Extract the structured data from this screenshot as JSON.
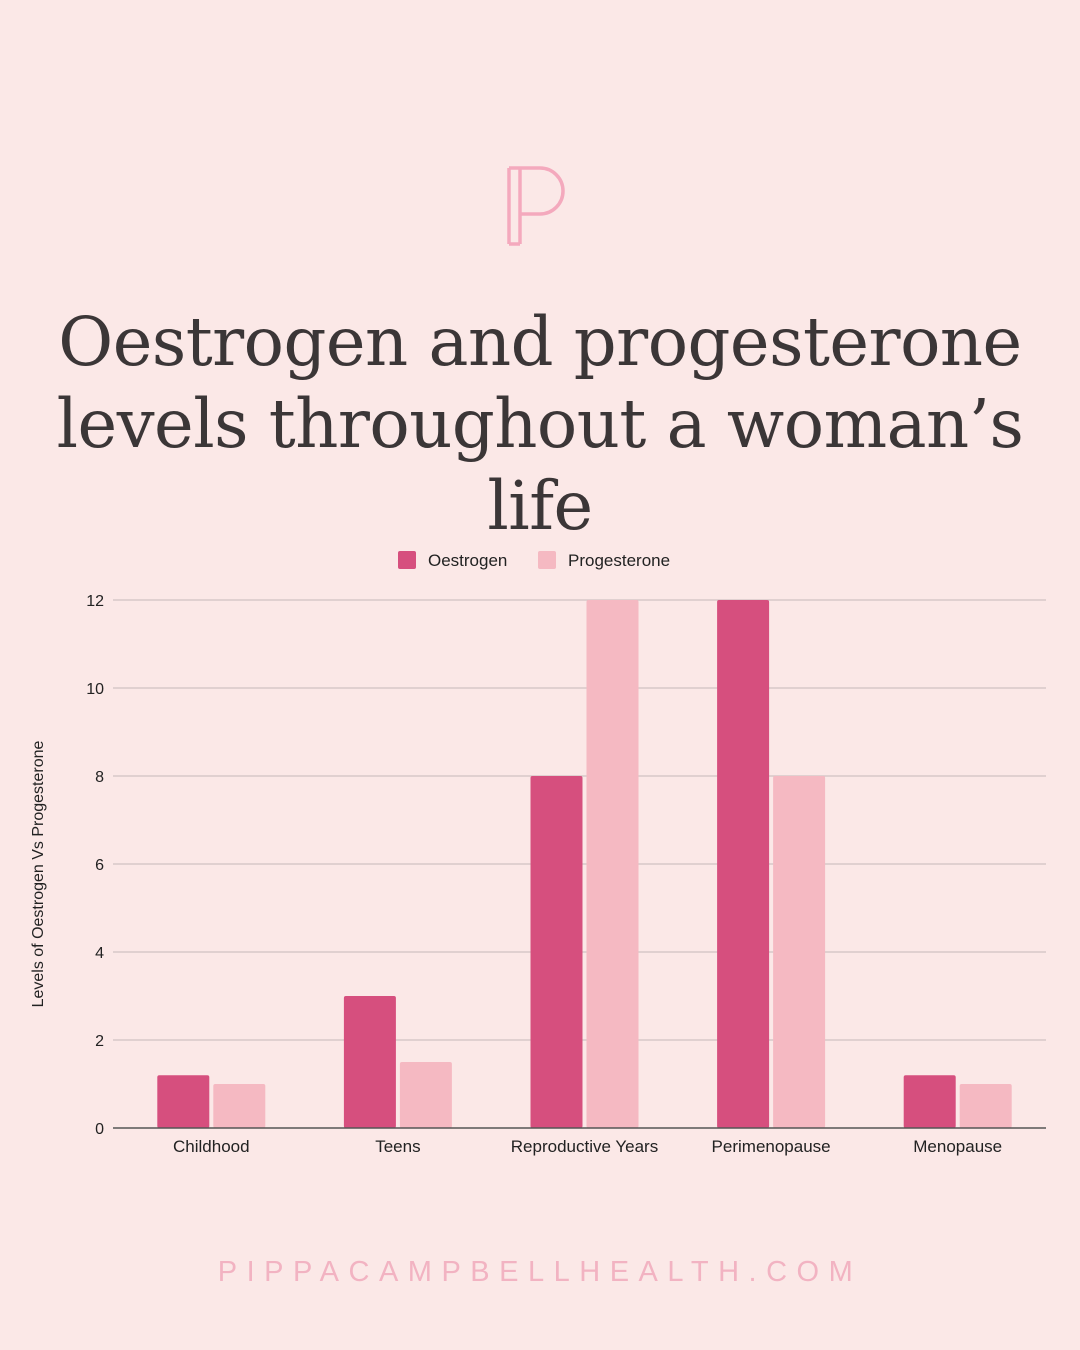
{
  "page": {
    "title_line1": "Oestrogen and progesterone",
    "title_line2": "levels throughout a woman’s life",
    "footer": "PIPPACAMPBELLHEALTH.COM",
    "logo_icon": "letter-p-monogram-icon"
  },
  "colors": {
    "background": "#fbe8e7",
    "oestrogen": "#d64f7e",
    "progesterone": "#f5b9c2",
    "logo": "#f4a9bd",
    "title": "#3b3637",
    "footer": "#f2b3c2"
  },
  "chart_data": {
    "type": "bar",
    "categories": [
      "Childhood",
      "Teens",
      "Reproductive Years",
      "Perimenopause",
      "Menopause"
    ],
    "series": [
      {
        "name": "Oestrogen",
        "values": [
          1.2,
          3,
          8,
          12,
          1.2
        ]
      },
      {
        "name": "Progesterone",
        "values": [
          1,
          1.5,
          12,
          8,
          1
        ]
      }
    ],
    "ylabel": "Levels of Oestrogen Vs Progesterone",
    "xlabel": "",
    "ylim": [
      0,
      12
    ],
    "yticks": [
      0,
      2,
      4,
      6,
      8,
      10,
      12
    ],
    "grid": true,
    "legend": "top"
  }
}
